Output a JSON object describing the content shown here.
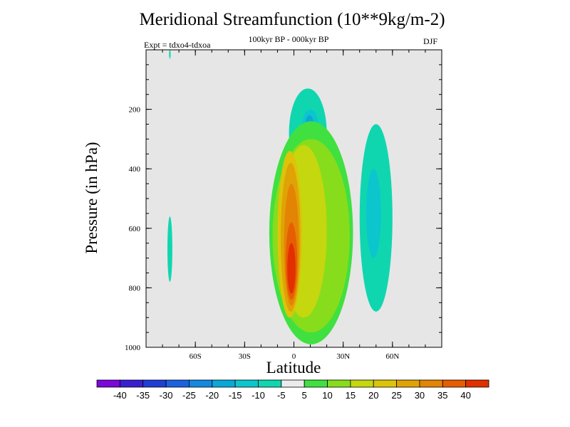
{
  "title": "Meridional Streamfunction (10**9kg/m-2)",
  "subtitle": "100kyr BP - 000kyr BP",
  "expt_label": "Expt = tdxo4-tdxoa",
  "season": "DJF",
  "chart_data": {
    "type": "heatmap",
    "xlabel": "Latitude",
    "ylabel": "Pressure (in hPa)",
    "x_ticks": [
      {
        "value": -60,
        "label": "60S"
      },
      {
        "value": -30,
        "label": "30S"
      },
      {
        "value": 0,
        "label": "0"
      },
      {
        "value": 30,
        "label": "30N"
      },
      {
        "value": 60,
        "label": "60N"
      }
    ],
    "y_ticks": [
      200,
      400,
      600,
      800,
      1000
    ],
    "xlim": [
      -90,
      90
    ],
    "ylim": [
      1000,
      0
    ],
    "grid": false,
    "colorbar": {
      "colors": [
        "#7b07d9",
        "#3a1fd1",
        "#1f3ed6",
        "#1b62e0",
        "#1388e0",
        "#0aa8d8",
        "#0bc6cd",
        "#10d6b0",
        "#ebebeb",
        "#40e040",
        "#87dd1b",
        "#c5d70f",
        "#dcc40a",
        "#e0a306",
        "#e38404",
        "#e65e02",
        "#e23000"
      ],
      "tick_labels": [
        "-40",
        "-35",
        "-30",
        "-25",
        "-20",
        "-15",
        "-10",
        "-5",
        "5",
        "10",
        "15",
        "20",
        "25",
        "30",
        "35",
        "40"
      ]
    },
    "regions": [
      {
        "level": -5,
        "lat_range": [
          -77,
          -74
        ],
        "p_range": [
          560,
          780
        ],
        "description": "thin negative cell at 75S"
      },
      {
        "level": -5,
        "lat_range": [
          -76,
          -75
        ],
        "p_range": [
          0,
          30
        ],
        "description": "top sliver"
      },
      {
        "level": -5,
        "lat_range": [
          -3,
          20
        ],
        "p_range": [
          130,
          430
        ],
        "description": "upper tropospheric negative cell near equator"
      },
      {
        "level": -10,
        "lat_range": [
          5,
          15
        ],
        "p_range": [
          200,
          320
        ]
      },
      {
        "level": -15,
        "lat_range": [
          7,
          12
        ],
        "p_range": [
          220,
          280
        ]
      },
      {
        "level": -5,
        "lat_range": [
          40,
          60
        ],
        "p_range": [
          250,
          880
        ],
        "description": "mid-latitude negative cell"
      },
      {
        "level": -10,
        "lat_range": [
          44,
          53
        ],
        "p_range": [
          400,
          700
        ]
      },
      {
        "level": 5,
        "lat_range": [
          -15,
          36
        ],
        "p_range": [
          240,
          990
        ],
        "description": "positive Hadley anomaly"
      },
      {
        "level": 10,
        "lat_range": [
          -13,
          34
        ],
        "p_range": [
          300,
          950
        ]
      },
      {
        "level": 15,
        "lat_range": [
          -8,
          20
        ],
        "p_range": [
          320,
          900
        ]
      },
      {
        "level": 20,
        "lat_range": [
          -10,
          5
        ],
        "p_range": [
          340,
          900
        ]
      },
      {
        "level": 25,
        "lat_range": [
          -8,
          4
        ],
        "p_range": [
          380,
          880
        ]
      },
      {
        "level": 30,
        "lat_range": [
          -6,
          3
        ],
        "p_range": [
          450,
          860
        ]
      },
      {
        "level": 35,
        "lat_range": [
          -5,
          2
        ],
        "p_range": [
          580,
          840
        ]
      },
      {
        "level": 40,
        "lat_range": [
          -4,
          1
        ],
        "p_range": [
          650,
          820
        ]
      }
    ]
  }
}
